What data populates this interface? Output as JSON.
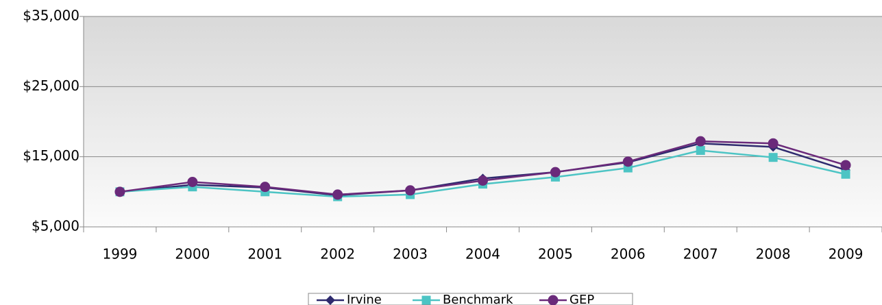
{
  "chart_data": {
    "type": "line",
    "categories": [
      "1999",
      "2000",
      "2001",
      "2002",
      "2003",
      "2004",
      "2005",
      "2006",
      "2007",
      "2008",
      "2009"
    ],
    "series": [
      {
        "name": "Irvine",
        "color": "#2e2a6e",
        "marker": "diamond",
        "values": [
          10000,
          11000,
          10600,
          9500,
          10200,
          11900,
          12800,
          14200,
          16900,
          16400,
          13100
        ]
      },
      {
        "name": "Benchmark",
        "color": "#4cc4c4",
        "marker": "square",
        "values": [
          10000,
          10700,
          10000,
          9300,
          9600,
          11100,
          12100,
          13400,
          15900,
          14900,
          12500
        ]
      },
      {
        "name": "GEP",
        "color": "#6a2a7a",
        "marker": "circle",
        "values": [
          10000,
          11400,
          10700,
          9600,
          10200,
          11600,
          12800,
          14300,
          17200,
          16900,
          13800
        ]
      }
    ],
    "ylim": [
      5000,
      35000
    ],
    "yticks": [
      {
        "value": 5000,
        "label": "$5,000"
      },
      {
        "value": 15000,
        "label": "$15,000"
      },
      {
        "value": 25000,
        "label": "$25,000"
      },
      {
        "value": 35000,
        "label": "$35,000"
      }
    ],
    "grid": true,
    "legend": "bottom"
  }
}
